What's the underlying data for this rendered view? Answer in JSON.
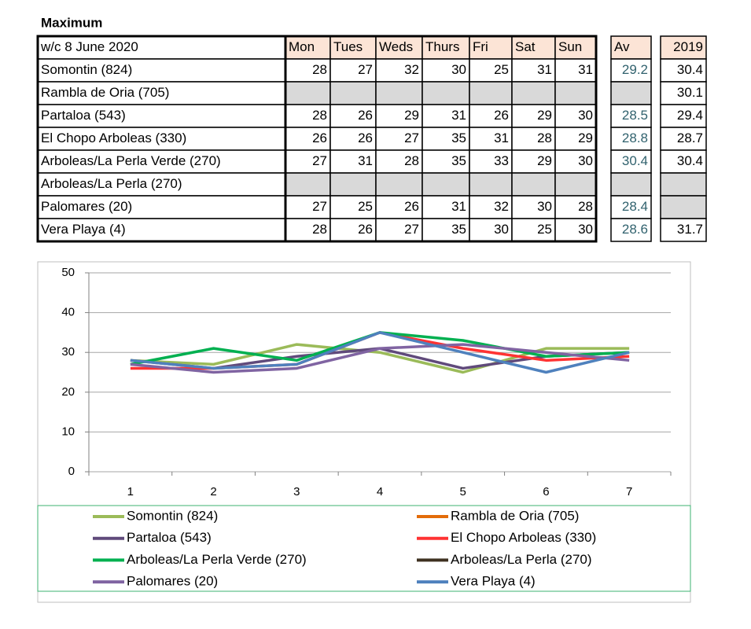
{
  "title": "Maximum",
  "table": {
    "header": {
      "week": "w/c  8 June 2020",
      "days": [
        "Mon",
        "Tues",
        "Weds",
        "Thurs",
        "Fri",
        "Sat",
        "Sun"
      ],
      "av": "Av",
      "prev": "2019"
    },
    "rows": [
      {
        "name": "Somontin (824)",
        "days": [
          28,
          27,
          32,
          30,
          25,
          31,
          31
        ],
        "av": 29.2,
        "prev": 30.4
      },
      {
        "name": "Rambla de Oria (705)",
        "days": [
          null,
          null,
          null,
          null,
          null,
          null,
          null
        ],
        "av": null,
        "prev": 30.1
      },
      {
        "name": "Partaloa (543)",
        "days": [
          28,
          26,
          29,
          31,
          26,
          29,
          30
        ],
        "av": 28.5,
        "prev": 29.4
      },
      {
        "name": "El Chopo  Arboleas (330)",
        "days": [
          26,
          26,
          27,
          35,
          31,
          28,
          29
        ],
        "av": 28.8,
        "prev": 28.7
      },
      {
        "name": "Arboleas/La Perla Verde (270)",
        "days": [
          27,
          31,
          28,
          35,
          33,
          29,
          30
        ],
        "av": 30.4,
        "prev": 30.4
      },
      {
        "name": "Arboleas/La Perla (270)",
        "days": [
          null,
          null,
          null,
          null,
          null,
          null,
          null
        ],
        "av": null,
        "prev": null
      },
      {
        "name": "Palomares (20)",
        "days": [
          27,
          25,
          26,
          31,
          32,
          30,
          28
        ],
        "av": 28.4,
        "prev": null
      },
      {
        "name": "Vera Playa (4)",
        "days": [
          28,
          26,
          27,
          35,
          30,
          25,
          30
        ],
        "av": 28.6,
        "prev": 31.7
      }
    ]
  },
  "chart_data": {
    "type": "line",
    "categories": [
      "1",
      "2",
      "3",
      "4",
      "5",
      "6",
      "7"
    ],
    "ylim": [
      0,
      50
    ],
    "yticks": [
      0,
      10,
      20,
      30,
      40,
      50
    ],
    "grid": true,
    "series": [
      {
        "name": "Somontin (824)",
        "color": "#9bbb59",
        "values": [
          28,
          27,
          32,
          30,
          25,
          31,
          31
        ]
      },
      {
        "name": "Rambla de Oria (705)",
        "color": "#e36c09",
        "values": [
          null,
          null,
          null,
          null,
          null,
          null,
          null
        ]
      },
      {
        "name": "Partaloa (543)",
        "color": "#604a7b",
        "values": [
          28,
          26,
          29,
          31,
          26,
          29,
          30
        ]
      },
      {
        "name": "El Chopo  Arboleas (330)",
        "color": "#ff3333",
        "values": [
          26,
          26,
          27,
          35,
          31,
          28,
          29
        ]
      },
      {
        "name": "Arboleas/La Perla Verde (270)",
        "color": "#00b050",
        "values": [
          27,
          31,
          28,
          35,
          33,
          29,
          30
        ]
      },
      {
        "name": "Arboleas/La Perla (270)",
        "color": "#3f3121",
        "values": [
          null,
          null,
          null,
          null,
          null,
          null,
          null
        ]
      },
      {
        "name": "Palomares (20)",
        "color": "#8064a2",
        "values": [
          27,
          25,
          26,
          31,
          32,
          30,
          28
        ]
      },
      {
        "name": "Vera Playa (4)",
        "color": "#4f81bd",
        "values": [
          28,
          26,
          27,
          35,
          30,
          25,
          30
        ]
      }
    ]
  }
}
